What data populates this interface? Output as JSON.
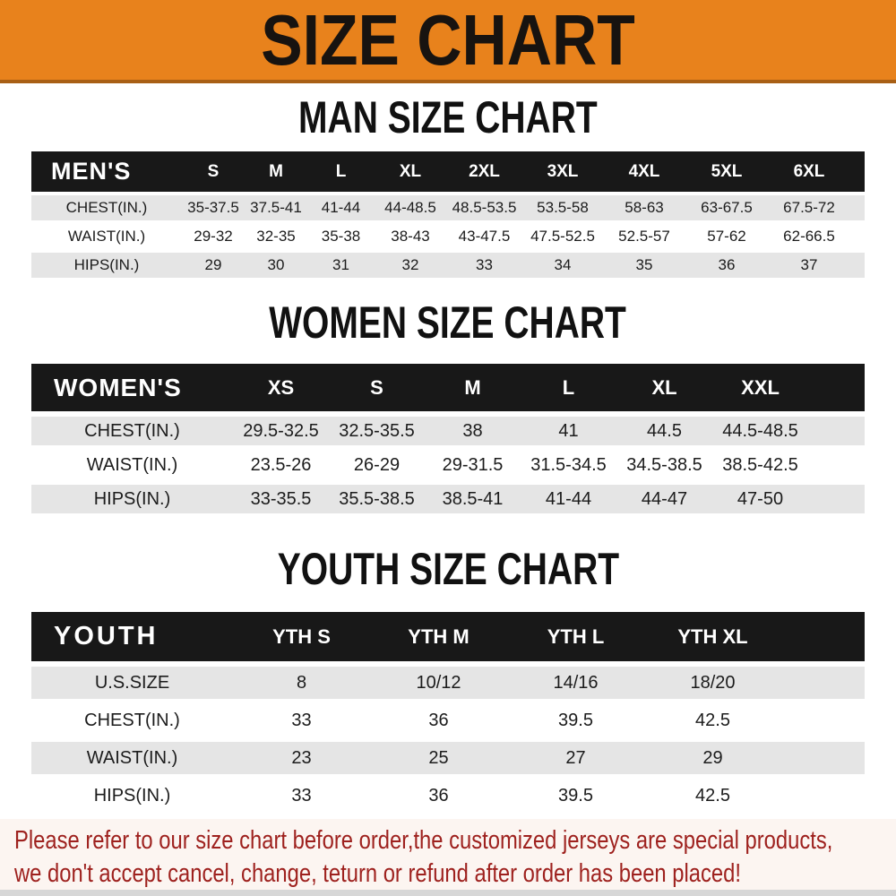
{
  "banner": {
    "title": "SIZE CHART"
  },
  "colors": {
    "banner_bg": "#e8821c",
    "banner_border": "#a85f15",
    "table_header_bg": "#181818",
    "table_header_text": "#ffffff",
    "row_stripe_bg": "#e5e5e5",
    "row_plain_bg": "#ffffff",
    "body_text": "#1c1c1c",
    "disclaimer_bg": "#fcf5f1",
    "disclaimer_text": "#9e211e"
  },
  "chart_data": [
    {
      "type": "table",
      "id": "men",
      "title": "MAN SIZE CHART",
      "header_label": "MEN'S",
      "columns": [
        "S",
        "M",
        "L",
        "XL",
        "2XL",
        "3XL",
        "4XL",
        "5XL",
        "6XL"
      ],
      "rows": [
        {
          "label": "CHEST(IN.)",
          "values": [
            "35-37.5",
            "37.5-41",
            "41-44",
            "44-48.5",
            "48.5-53.5",
            "53.5-58",
            "58-63",
            "63-67.5",
            "67.5-72"
          ]
        },
        {
          "label": "WAIST(IN.)",
          "values": [
            "29-32",
            "32-35",
            "35-38",
            "38-43",
            "43-47.5",
            "47.5-52.5",
            "52.5-57",
            "57-62",
            "62-66.5"
          ]
        },
        {
          "label": "HIPS(IN.)",
          "values": [
            "29",
            "30",
            "31",
            "32",
            "33",
            "34",
            "35",
            "36",
            "37"
          ]
        }
      ]
    },
    {
      "type": "table",
      "id": "women",
      "title": "WOMEN SIZE CHART",
      "header_label": "WOMEN'S",
      "columns": [
        "XS",
        "S",
        "M",
        "L",
        "XL",
        "XXL"
      ],
      "rows": [
        {
          "label": "CHEST(IN.)",
          "values": [
            "29.5-32.5",
            "32.5-35.5",
            "38",
            "41",
            "44.5",
            "44.5-48.5"
          ]
        },
        {
          "label": "WAIST(IN.)",
          "values": [
            "23.5-26",
            "26-29",
            "29-31.5",
            "31.5-34.5",
            "34.5-38.5",
            "38.5-42.5"
          ]
        },
        {
          "label": "HIPS(IN.)",
          "values": [
            "33-35.5",
            "35.5-38.5",
            "38.5-41",
            "41-44",
            "44-47",
            "47-50"
          ]
        }
      ]
    },
    {
      "type": "table",
      "id": "youth",
      "title": "YOUTH SIZE CHART",
      "header_label": "YOUTH",
      "columns": [
        "YTH S",
        "YTH M",
        "YTH L",
        "YTH XL"
      ],
      "rows": [
        {
          "label": "U.S.SIZE",
          "values": [
            "8",
            "10/12",
            "14/16",
            "18/20"
          ]
        },
        {
          "label": "CHEST(IN.)",
          "values": [
            "33",
            "36",
            "39.5",
            "42.5"
          ]
        },
        {
          "label": "WAIST(IN.)",
          "values": [
            "23",
            "25",
            "27",
            "29"
          ]
        },
        {
          "label": "HIPS(IN.)",
          "values": [
            "33",
            "36",
            "39.5",
            "42.5"
          ]
        }
      ]
    }
  ],
  "disclaimer": {
    "line1": "Please refer to our size chart before order,the customized jerseys are special products,",
    "line2": "we don't accept cancel, change, teturn or refund after order has been placed!"
  }
}
